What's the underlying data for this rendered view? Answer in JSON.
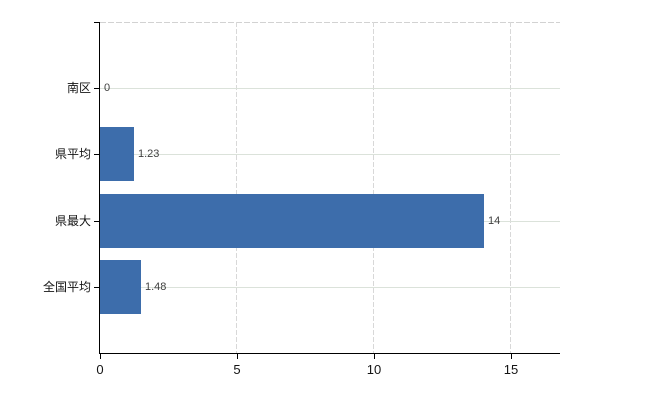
{
  "chart_data": {
    "type": "bar",
    "orientation": "horizontal",
    "title": "",
    "xlabel": "",
    "ylabel": "",
    "categories": [
      "南区",
      "県平均",
      "県最大",
      "全国平均"
    ],
    "values": [
      0,
      1.23,
      14,
      1.48
    ],
    "value_labels": [
      "0",
      "1.23",
      "14",
      "1.48"
    ],
    "x_ticks": [
      0,
      5,
      10,
      15
    ],
    "x_tick_labels": [
      "0",
      "5",
      "10",
      "15"
    ],
    "xlim": [
      0,
      16.8
    ],
    "grid": true,
    "legend": "none",
    "bar_color": "#3d6dab"
  },
  "colors": {
    "bar": "#3d6dab",
    "axis": "#000000",
    "horizontal_grid": "#dbe2da",
    "vertical_grid": "#d8d8d8",
    "top_border": "#d2d2d2",
    "value_label_text": "#3f3f3f",
    "tick_label_text": "#141414",
    "background": "#ffffff"
  }
}
